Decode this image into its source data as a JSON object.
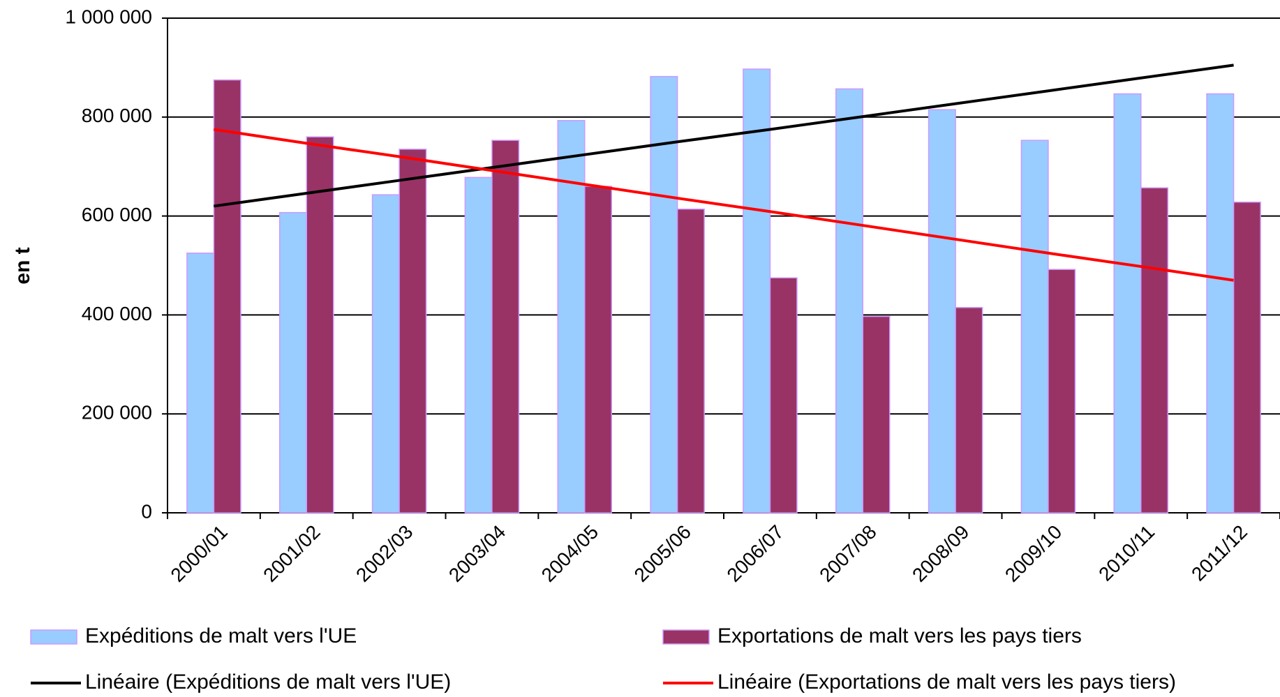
{
  "chart_data": {
    "type": "bar",
    "ylabel": "en t",
    "categories": [
      "2000/01",
      "2001/02",
      "2002/03",
      "2003/04",
      "2004/05",
      "2005/06",
      "2006/07",
      "2007/08",
      "2008/09",
      "2009/10",
      "2010/11",
      "2011/12"
    ],
    "series": [
      {
        "name": "Expéditions de malt vers l'UE",
        "type": "bar",
        "color": "#99ccff",
        "values": [
          525000,
          607000,
          643000,
          678000,
          793000,
          882000,
          897000,
          857000,
          815000,
          753000,
          847000,
          847000
        ]
      },
      {
        "name": "Exportations de malt vers les pays tiers",
        "type": "bar",
        "color": "#993366",
        "values": [
          875000,
          760000,
          735000,
          753000,
          660000,
          614000,
          475000,
          397000,
          415000,
          492000,
          657000,
          628000
        ]
      },
      {
        "name": "Linéaire (Expéditions de malt vers l'UE)",
        "type": "line",
        "color": "#000000",
        "values": [
          620000,
          646000,
          672000,
          698000,
          724000,
          750000,
          775000,
          801000,
          827000,
          853000,
          879000,
          905000
        ]
      },
      {
        "name": "Linéaire (Exportations de malt vers les pays tiers)",
        "type": "line",
        "color": "#ff0000",
        "values": [
          775000,
          747000,
          720000,
          692000,
          664000,
          636000,
          609000,
          581000,
          553000,
          525000,
          498000,
          470000
        ]
      }
    ],
    "ylim": [
      0,
      1000000
    ],
    "yticks": [
      0,
      {
        "value": 200000,
        "label": "200 000"
      },
      {
        "value": 400000,
        "label": "400 000"
      },
      {
        "value": 600000,
        "label": "600 000"
      },
      {
        "value": 800000,
        "label": "800 000"
      },
      {
        "value": 1000000,
        "label": "1 000 000"
      }
    ],
    "grid": true
  }
}
